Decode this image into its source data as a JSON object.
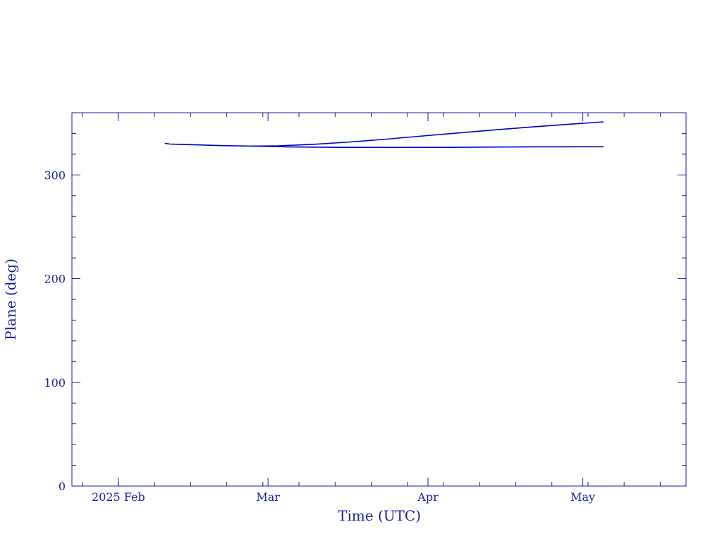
{
  "chart_data": {
    "type": "line",
    "xlabel": "Time (UTC)",
    "ylabel": "Plane (deg)",
    "x_tick_labels": [
      "2025 Feb",
      "Mar",
      "Apr",
      "May"
    ],
    "x_ticks": [
      "2025-01-31",
      "2025-03-01",
      "2025-04-01",
      "2025-05-01"
    ],
    "xlim": [
      "2025-01-22",
      "2025-05-21"
    ],
    "ylim": [
      0,
      360
    ],
    "y_ticks": [
      0,
      100,
      200,
      300
    ],
    "grid": false,
    "series": [
      {
        "color": "#0000cc",
        "points": [
          [
            "2025-02-09",
            330.5
          ],
          [
            "2025-02-10",
            329.8
          ],
          [
            "2025-02-15",
            329.0
          ],
          [
            "2025-02-20",
            328.3
          ],
          [
            "2025-02-26",
            327.8
          ],
          [
            "2025-03-03",
            328.1
          ],
          [
            "2025-03-10",
            329.6
          ],
          [
            "2025-03-17",
            331.8
          ],
          [
            "2025-03-24",
            334.5
          ],
          [
            "2025-03-31",
            337.6
          ],
          [
            "2025-04-07",
            340.5
          ],
          [
            "2025-04-14",
            343.5
          ],
          [
            "2025-04-21",
            346.2
          ],
          [
            "2025-04-28",
            348.7
          ],
          [
            "2025-05-05",
            351.2
          ]
        ]
      },
      {
        "color": "#0000cc",
        "points": [
          [
            "2025-02-26",
            327.9
          ],
          [
            "2025-03-05",
            327.0
          ],
          [
            "2025-03-15",
            326.6
          ],
          [
            "2025-03-25",
            326.5
          ],
          [
            "2025-04-05",
            326.6
          ],
          [
            "2025-04-15",
            326.9
          ],
          [
            "2025-04-25",
            327.1
          ],
          [
            "2025-05-05",
            327.2
          ]
        ]
      }
    ]
  }
}
